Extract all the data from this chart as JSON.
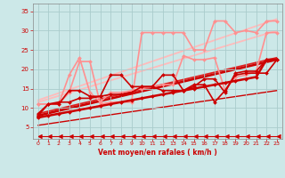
{
  "bg_color": "#cce8e8",
  "grid_color": "#aacccc",
  "xlabel": "Vent moyen/en rafales ( km/h )",
  "xlabel_color": "#cc0000",
  "tick_color": "#cc0000",
  "xlim": [
    -0.5,
    23.5
  ],
  "ylim": [
    2,
    37
  ],
  "yticks": [
    5,
    10,
    15,
    20,
    25,
    30,
    35
  ],
  "xticks": [
    0,
    1,
    2,
    3,
    4,
    5,
    6,
    7,
    8,
    9,
    10,
    11,
    12,
    13,
    14,
    15,
    16,
    17,
    18,
    19,
    20,
    21,
    22,
    23
  ],
  "line_bottom": {
    "x": [
      0,
      1,
      2,
      3,
      4,
      5,
      6,
      7,
      8,
      9,
      10,
      11,
      12,
      13,
      14,
      15,
      16,
      17,
      18,
      19,
      20,
      21,
      22,
      23
    ],
    "y": [
      2.8,
      2.8,
      2.8,
      2.8,
      2.8,
      2.8,
      2.8,
      2.8,
      2.8,
      2.8,
      2.8,
      2.8,
      2.8,
      2.8,
      2.8,
      2.8,
      2.8,
      2.8,
      2.8,
      2.8,
      2.8,
      2.8,
      2.8,
      2.8
    ],
    "color": "#cc0000",
    "lw": 0.8,
    "marker": 4,
    "ms": 3.5
  },
  "line_dark_steady": {
    "x": [
      0,
      1,
      2,
      3,
      4,
      5,
      6,
      7,
      8,
      9,
      10,
      11,
      12,
      13,
      14,
      15,
      16,
      17,
      18,
      19,
      20,
      21,
      22,
      23
    ],
    "y": [
      7.5,
      8.0,
      8.5,
      9.0,
      9.5,
      10.0,
      10.5,
      11.0,
      11.5,
      12.0,
      12.5,
      13.0,
      13.5,
      14.0,
      14.5,
      15.0,
      15.5,
      16.0,
      16.5,
      17.0,
      17.5,
      18.0,
      22.5,
      22.5
    ],
    "color": "#cc0000",
    "lw": 1.8,
    "marker": "D",
    "ms": 2.0
  },
  "line_dark2": {
    "x": [
      0,
      1,
      2,
      3,
      4,
      5,
      6,
      7,
      8,
      9,
      10,
      11,
      12,
      13,
      14,
      15,
      16,
      17,
      18,
      19,
      20,
      21,
      22,
      23
    ],
    "y": [
      8.0,
      11.0,
      11.5,
      11.5,
      12.5,
      12.5,
      13.0,
      18.5,
      18.5,
      15.5,
      15.5,
      15.5,
      18.5,
      18.5,
      14.5,
      15.5,
      17.5,
      17.5,
      14.0,
      19.0,
      19.5,
      19.5,
      22.5,
      22.5
    ],
    "color": "#cc0000",
    "lw": 1.2,
    "marker": "D",
    "ms": 2.0
  },
  "line_dark3": {
    "x": [
      0,
      1,
      2,
      3,
      4,
      5,
      6,
      7,
      8,
      9,
      10,
      11,
      12,
      13,
      14,
      15,
      16,
      17,
      18,
      19,
      20,
      21,
      22,
      23
    ],
    "y": [
      8.5,
      11.0,
      11.0,
      14.5,
      14.5,
      13.0,
      13.0,
      13.5,
      13.5,
      14.0,
      15.5,
      15.5,
      14.5,
      14.5,
      14.5,
      16.0,
      16.0,
      11.5,
      14.5,
      18.5,
      19.0,
      19.0,
      19.0,
      22.5
    ],
    "color": "#cc0000",
    "lw": 1.2,
    "marker": "D",
    "ms": 2.0
  },
  "line_light1": {
    "x": [
      0,
      1,
      2,
      3,
      4,
      5,
      6,
      7,
      8,
      9,
      10,
      11,
      12,
      13,
      14,
      15,
      16,
      17,
      18,
      19,
      20,
      21,
      22,
      23
    ],
    "y": [
      11.0,
      11.0,
      11.0,
      14.0,
      22.0,
      22.0,
      11.0,
      11.5,
      11.5,
      11.5,
      29.5,
      29.5,
      29.5,
      29.5,
      29.5,
      25.0,
      25.0,
      32.5,
      32.5,
      29.5,
      30.0,
      29.5,
      32.5,
      32.5
    ],
    "color": "#ff9090",
    "lw": 1.2,
    "marker": "D",
    "ms": 2.0
  },
  "line_light2": {
    "x": [
      0,
      1,
      2,
      3,
      4,
      5,
      6,
      7,
      8,
      9,
      10,
      11,
      12,
      13,
      14,
      15,
      16,
      17,
      18,
      19,
      20,
      21,
      22,
      23
    ],
    "y": [
      11.0,
      11.0,
      11.0,
      18.5,
      23.0,
      14.0,
      11.5,
      14.0,
      14.0,
      14.5,
      15.0,
      15.5,
      16.0,
      16.0,
      23.5,
      22.5,
      22.5,
      23.0,
      14.5,
      18.0,
      18.5,
      19.5,
      29.5,
      29.5
    ],
    "color": "#ff9090",
    "lw": 1.2,
    "marker": "D",
    "ms": 2.0
  },
  "trend_light_high": {
    "x": [
      0,
      23
    ],
    "y": [
      12.0,
      33.0
    ],
    "color": "#ffbbbb",
    "lw": 1.3
  },
  "trend_light_low": {
    "x": [
      0,
      23
    ],
    "y": [
      11.5,
      30.0
    ],
    "color": "#ffbbbb",
    "lw": 1.3
  },
  "trend_dark_high": {
    "x": [
      0,
      23
    ],
    "y": [
      8.5,
      23.0
    ],
    "color": "#dd2222",
    "lw": 1.3
  },
  "trend_dark_mid": {
    "x": [
      0,
      23
    ],
    "y": [
      8.0,
      22.5
    ],
    "color": "#cc0000",
    "lw": 1.8
  },
  "trend_dark_low": {
    "x": [
      0,
      23
    ],
    "y": [
      5.5,
      14.5
    ],
    "color": "#cc0000",
    "lw": 1.0
  }
}
